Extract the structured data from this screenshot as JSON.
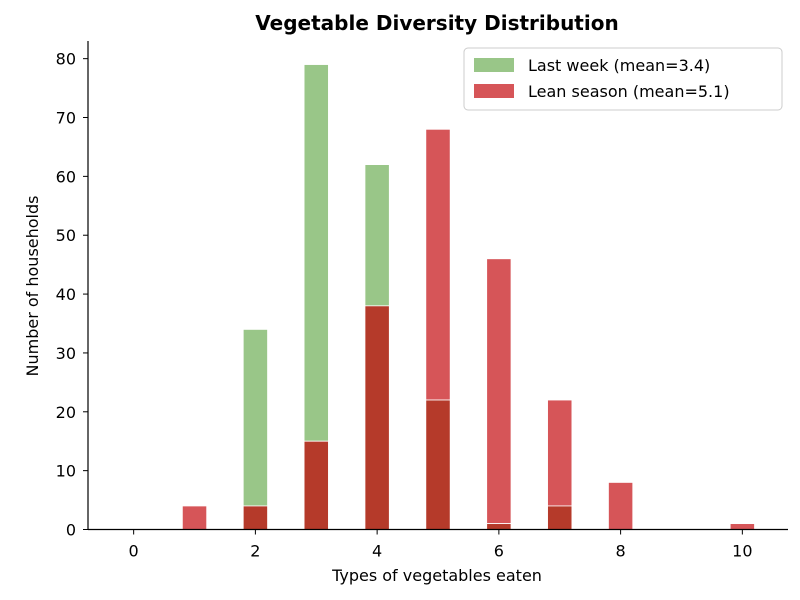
{
  "chart_data": {
    "type": "bar",
    "title": "Vegetable Diversity Distribution",
    "xlabel": "Types of vegetables eaten",
    "ylabel": "Number of households",
    "x": [
      0,
      1,
      2,
      3,
      4,
      5,
      6,
      7,
      8,
      9,
      10
    ],
    "xticks": [
      0,
      2,
      4,
      6,
      8,
      10
    ],
    "yticks": [
      0,
      10,
      20,
      30,
      40,
      50,
      60,
      70,
      80
    ],
    "xlim": [
      -0.75,
      10.75
    ],
    "ylim": [
      0,
      83
    ],
    "bar_width_units": 0.4,
    "grid": false,
    "legend_position": "top-right",
    "series": [
      {
        "name": "Last week (mean=3.4)",
        "color": "#7fb86a",
        "values": [
          0,
          0,
          34,
          79,
          62,
          22,
          1,
          4,
          0,
          0,
          0
        ]
      },
      {
        "name": "Lean season (mean=5.1)",
        "color": "#cc2a2e",
        "values": [
          0,
          4,
          4,
          15,
          38,
          68,
          46,
          22,
          8,
          0,
          1
        ]
      }
    ],
    "overlap_color": "#b53a2a"
  }
}
